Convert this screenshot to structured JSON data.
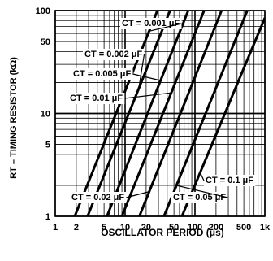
{
  "chart_data": {
    "type": "line",
    "title": "",
    "xlabel": "OSCILLATOR PERIOD (μs)",
    "ylabel": "RT – TIMING RESISTOR (kΩ)",
    "xscale": "log",
    "yscale": "log",
    "xlim": [
      1,
      1000
    ],
    "ylim": [
      1,
      100
    ],
    "grid": true,
    "x_ticks": [
      {
        "value": 1,
        "label": "1"
      },
      {
        "value": 2,
        "label": "2"
      },
      {
        "value": 5,
        "label": "5"
      },
      {
        "value": 10,
        "label": "10"
      },
      {
        "value": 20,
        "label": "20"
      },
      {
        "value": 50,
        "label": "50"
      },
      {
        "value": 100,
        "label": "100"
      },
      {
        "value": 200,
        "label": "200"
      },
      {
        "value": 500,
        "label": "500"
      },
      {
        "value": 1000,
        "label": "1k"
      }
    ],
    "y_ticks": [
      {
        "value": 1,
        "label": "1"
      },
      {
        "value": 5,
        "label": "5"
      },
      {
        "value": 10,
        "label": "10"
      },
      {
        "value": 50,
        "label": "50"
      },
      {
        "value": 100,
        "label": "100"
      }
    ],
    "series": [
      {
        "name": "CT = 0.001 μF",
        "x": [
          1.9,
          29
        ],
        "y": [
          1,
          100
        ]
      },
      {
        "name": "CT = 0.002 μF",
        "x": [
          2.9,
          44
        ],
        "y": [
          1,
          100
        ]
      },
      {
        "name": "CT = 0.005 μF",
        "x": [
          5.5,
          80
        ],
        "y": [
          1,
          100
        ]
      },
      {
        "name": "CT = 0.01 μF",
        "x": [
          9,
          135
        ],
        "y": [
          1,
          100
        ]
      },
      {
        "name": "CT = 0.02 μF",
        "x": [
          16,
          240
        ],
        "y": [
          1,
          100
        ]
      },
      {
        "name": "CT = 0.05 μF",
        "x": [
          36,
          560
        ],
        "y": [
          1,
          100
        ]
      },
      {
        "name": "CT = 0.1 μF",
        "x": [
          65,
          1000
        ],
        "y": [
          1,
          85
        ]
      }
    ]
  }
}
